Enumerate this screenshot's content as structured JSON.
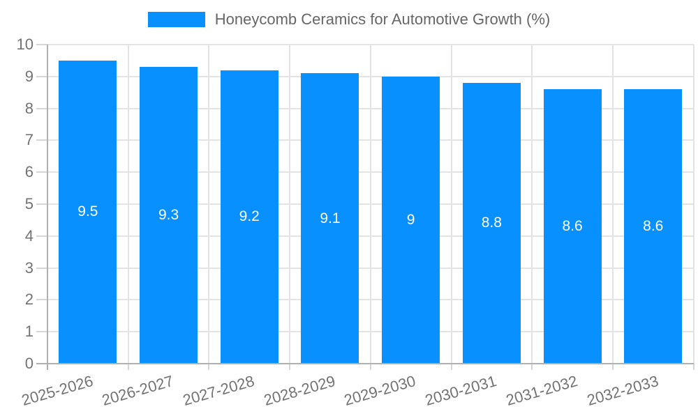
{
  "chart_data": {
    "type": "bar",
    "title": "Honeycomb Ceramics for Automotive Growth (%)",
    "categories": [
      "2025-2026",
      "2026-2027",
      "2027-2028",
      "2028-2029",
      "2029-2030",
      "2030-2031",
      "2031-2032",
      "2032-2033"
    ],
    "values": [
      9.5,
      9.3,
      9.2,
      9.1,
      9,
      8.8,
      8.6,
      8.6
    ],
    "bar_labels": [
      "9.5",
      "9.3",
      "9.2",
      "9.1",
      "9",
      "8.8",
      "8.6",
      "8.6"
    ],
    "xlabel": "",
    "ylabel": "",
    "ylim": [
      0,
      10
    ],
    "ytick_step": 1,
    "y_tick_labels": [
      "0",
      "1",
      "2",
      "3",
      "4",
      "5",
      "6",
      "7",
      "8",
      "9",
      "10"
    ],
    "grid": true,
    "legend_position": "top",
    "colors": {
      "bar": "#0890ff",
      "bar_label_text": "#ffffff",
      "gridline": "#e3e3e3",
      "axis_line": "#b0b0b0",
      "tick_mark": "#d6d6d6",
      "tick_text": "#737373",
      "title_text": "#666666",
      "background": "#ffffff"
    }
  },
  "legend": {
    "label": "Honeycomb Ceramics for Automotive Growth (%)",
    "swatch_color": "#0890ff"
  }
}
